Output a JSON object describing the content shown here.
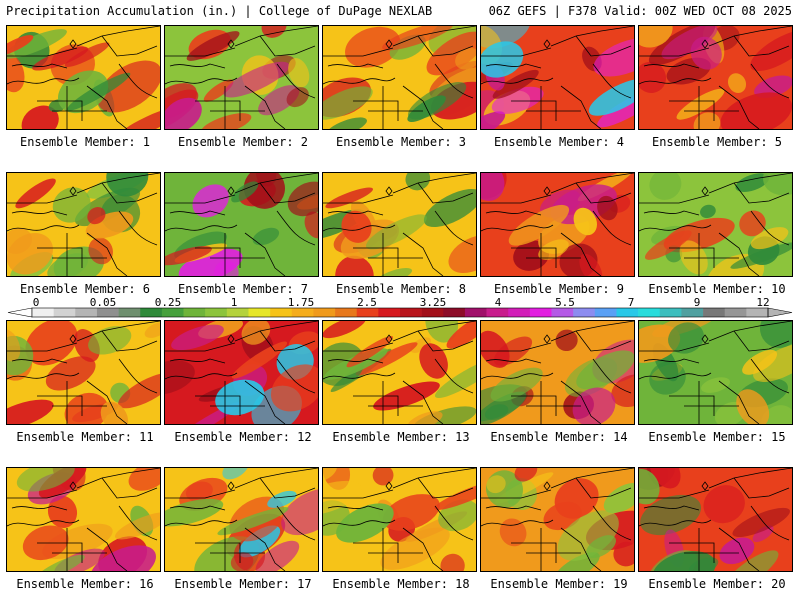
{
  "header": {
    "title": "Precipitation Accumulation (in.) | College of DuPage NEXLAB",
    "run_info": "06Z GEFS | F378 Valid: 00Z WED OCT 08 2025"
  },
  "members": [
    {
      "label": "Ensemble Member: 1",
      "base": "#f6c318",
      "spots": [
        "#d6191f",
        "#e8401c",
        "#6fb43a",
        "#2f8a3a",
        "#d6191f"
      ]
    },
    {
      "label": "Ensemble Member: 2",
      "base": "#8cc43c",
      "spots": [
        "#d6191f",
        "#e8401c",
        "#a20f1a",
        "#c81c8c",
        "#f6c318"
      ]
    },
    {
      "label": "Ensemble Member: 3",
      "base": "#f6c318",
      "spots": [
        "#d6191f",
        "#2f8a3a",
        "#6fb43a",
        "#e8401c",
        "#f09a1c"
      ]
    },
    {
      "label": "Ensemble Member: 4",
      "base": "#e8401c",
      "spots": [
        "#a20f1a",
        "#c81c8c",
        "#e21fe0",
        "#29c8e8",
        "#f6c318"
      ]
    },
    {
      "label": "Ensemble Member: 5",
      "base": "#e8401c",
      "spots": [
        "#a20f1a",
        "#c81c8c",
        "#d6191f",
        "#f6c318",
        "#f09a1c"
      ]
    },
    {
      "label": "Ensemble Member: 6",
      "base": "#f6c318",
      "spots": [
        "#6fb43a",
        "#2f8a3a",
        "#d6191f",
        "#f09a1c",
        "#8cc43c"
      ]
    },
    {
      "label": "Ensemble Member: 7",
      "base": "#6fb43a",
      "spots": [
        "#2f8a3a",
        "#d6191f",
        "#e21fe0",
        "#a20f1a",
        "#f6c318"
      ]
    },
    {
      "label": "Ensemble Member: 8",
      "base": "#f6c318",
      "spots": [
        "#2f8a3a",
        "#6fb43a",
        "#e8401c",
        "#d6191f",
        "#f09a1c"
      ]
    },
    {
      "label": "Ensemble Member: 9",
      "base": "#e8401c",
      "spots": [
        "#d6191f",
        "#a20f1a",
        "#c81c8c",
        "#f6c318",
        "#f09a1c"
      ]
    },
    {
      "label": "Ensemble Member: 10",
      "base": "#8cc43c",
      "spots": [
        "#2f8a3a",
        "#6fb43a",
        "#f6c318",
        "#e8401c",
        "#2f8a3a"
      ]
    },
    {
      "label": "Ensemble Member: 11",
      "base": "#f6c318",
      "spots": [
        "#d6191f",
        "#e8401c",
        "#6fb43a",
        "#f09a1c",
        "#d6191f"
      ]
    },
    {
      "label": "Ensemble Member: 12",
      "base": "#d6191f",
      "spots": [
        "#a20f1a",
        "#e8401c",
        "#29c8e8",
        "#c81c8c",
        "#f09a1c"
      ]
    },
    {
      "label": "Ensemble Member: 13",
      "base": "#f6c318",
      "spots": [
        "#2f8a3a",
        "#6fb43a",
        "#e8401c",
        "#d6191f",
        "#f09a1c"
      ]
    },
    {
      "label": "Ensemble Member: 14",
      "base": "#f09a1c",
      "spots": [
        "#d6191f",
        "#a20f1a",
        "#2f8a3a",
        "#6fb43a",
        "#c81c8c"
      ]
    },
    {
      "label": "Ensemble Member: 15",
      "base": "#6fb43a",
      "spots": [
        "#2f8a3a",
        "#8cc43c",
        "#f6c318",
        "#f09a1c",
        "#2f8a3a"
      ]
    },
    {
      "label": "Ensemble Member: 16",
      "base": "#f6c318",
      "spots": [
        "#d6191f",
        "#e8401c",
        "#c81c8c",
        "#6fb43a",
        "#f09a1c"
      ]
    },
    {
      "label": "Ensemble Member: 17",
      "base": "#f6c318",
      "spots": [
        "#d6191f",
        "#e8401c",
        "#6fb43a",
        "#29c8e8",
        "#c81c8c"
      ]
    },
    {
      "label": "Ensemble Member: 18",
      "base": "#f6c318",
      "spots": [
        "#f09a1c",
        "#e8401c",
        "#d6191f",
        "#6fb43a",
        "#f6c318"
      ]
    },
    {
      "label": "Ensemble Member: 19",
      "base": "#f09a1c",
      "spots": [
        "#8cc43c",
        "#d6191f",
        "#e8401c",
        "#6fb43a",
        "#f6c318"
      ]
    },
    {
      "label": "Ensemble Member: 20",
      "base": "#e8401c",
      "spots": [
        "#a20f1a",
        "#c81c8c",
        "#6fb43a",
        "#2f8a3a",
        "#d6191f"
      ]
    }
  ],
  "colorbar": {
    "labels": [
      "0",
      "0.05",
      "0.25",
      "1",
      "1.75",
      "2.5",
      "3.25",
      "4",
      "5.5",
      "7",
      "9",
      "12"
    ],
    "colors": [
      "#f0f0f0",
      "#d2d2d2",
      "#b4b4b4",
      "#8f8f8f",
      "#6f8f6f",
      "#2f8a3a",
      "#46a03c",
      "#6fb43a",
      "#8cc43c",
      "#b4d23c",
      "#e6e628",
      "#f6c318",
      "#f5ad1c",
      "#f09a1c",
      "#e8781c",
      "#e8401c",
      "#d6191f",
      "#b8141c",
      "#a20f1a",
      "#8c0c28",
      "#a0106a",
      "#c81c8c",
      "#d21eb8",
      "#e21fe0",
      "#b45ae6",
      "#8c8cf0",
      "#5aa0f5",
      "#29c8e8",
      "#28dcdc",
      "#3cbebe",
      "#50a0a0",
      "#787878",
      "#969696",
      "#b4b4b4"
    ]
  }
}
